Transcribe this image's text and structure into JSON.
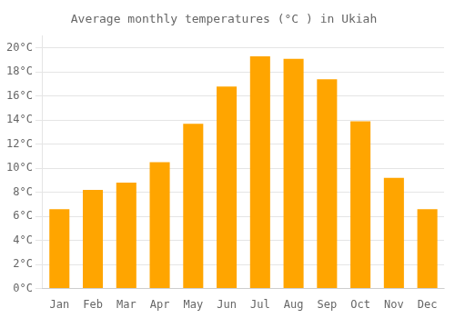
{
  "chart_data": {
    "type": "bar",
    "title": "Average monthly temperatures (°C ) in Ukiah",
    "categories": [
      "Jan",
      "Feb",
      "Mar",
      "Apr",
      "May",
      "Jun",
      "Jul",
      "Aug",
      "Sep",
      "Oct",
      "Nov",
      "Dec"
    ],
    "values": [
      6.6,
      8.2,
      8.8,
      10.5,
      13.7,
      16.8,
      19.3,
      19.1,
      17.4,
      13.9,
      9.2,
      6.6
    ],
    "color": "#FFA500",
    "ylim": [
      0,
      21
    ],
    "yticks": [
      {
        "value": 0,
        "label": "0°C"
      },
      {
        "value": 2,
        "label": "2°C"
      },
      {
        "value": 4,
        "label": "4°C"
      },
      {
        "value": 6,
        "label": "6°C"
      },
      {
        "value": 8,
        "label": "8°C"
      },
      {
        "value": 10,
        "label": "10°C"
      },
      {
        "value": 12,
        "label": "12°C"
      },
      {
        "value": 14,
        "label": "14°C"
      },
      {
        "value": 16,
        "label": "16°C"
      },
      {
        "value": 18,
        "label": "18°C"
      },
      {
        "value": 20,
        "label": "20°C"
      }
    ],
    "grid": true
  }
}
